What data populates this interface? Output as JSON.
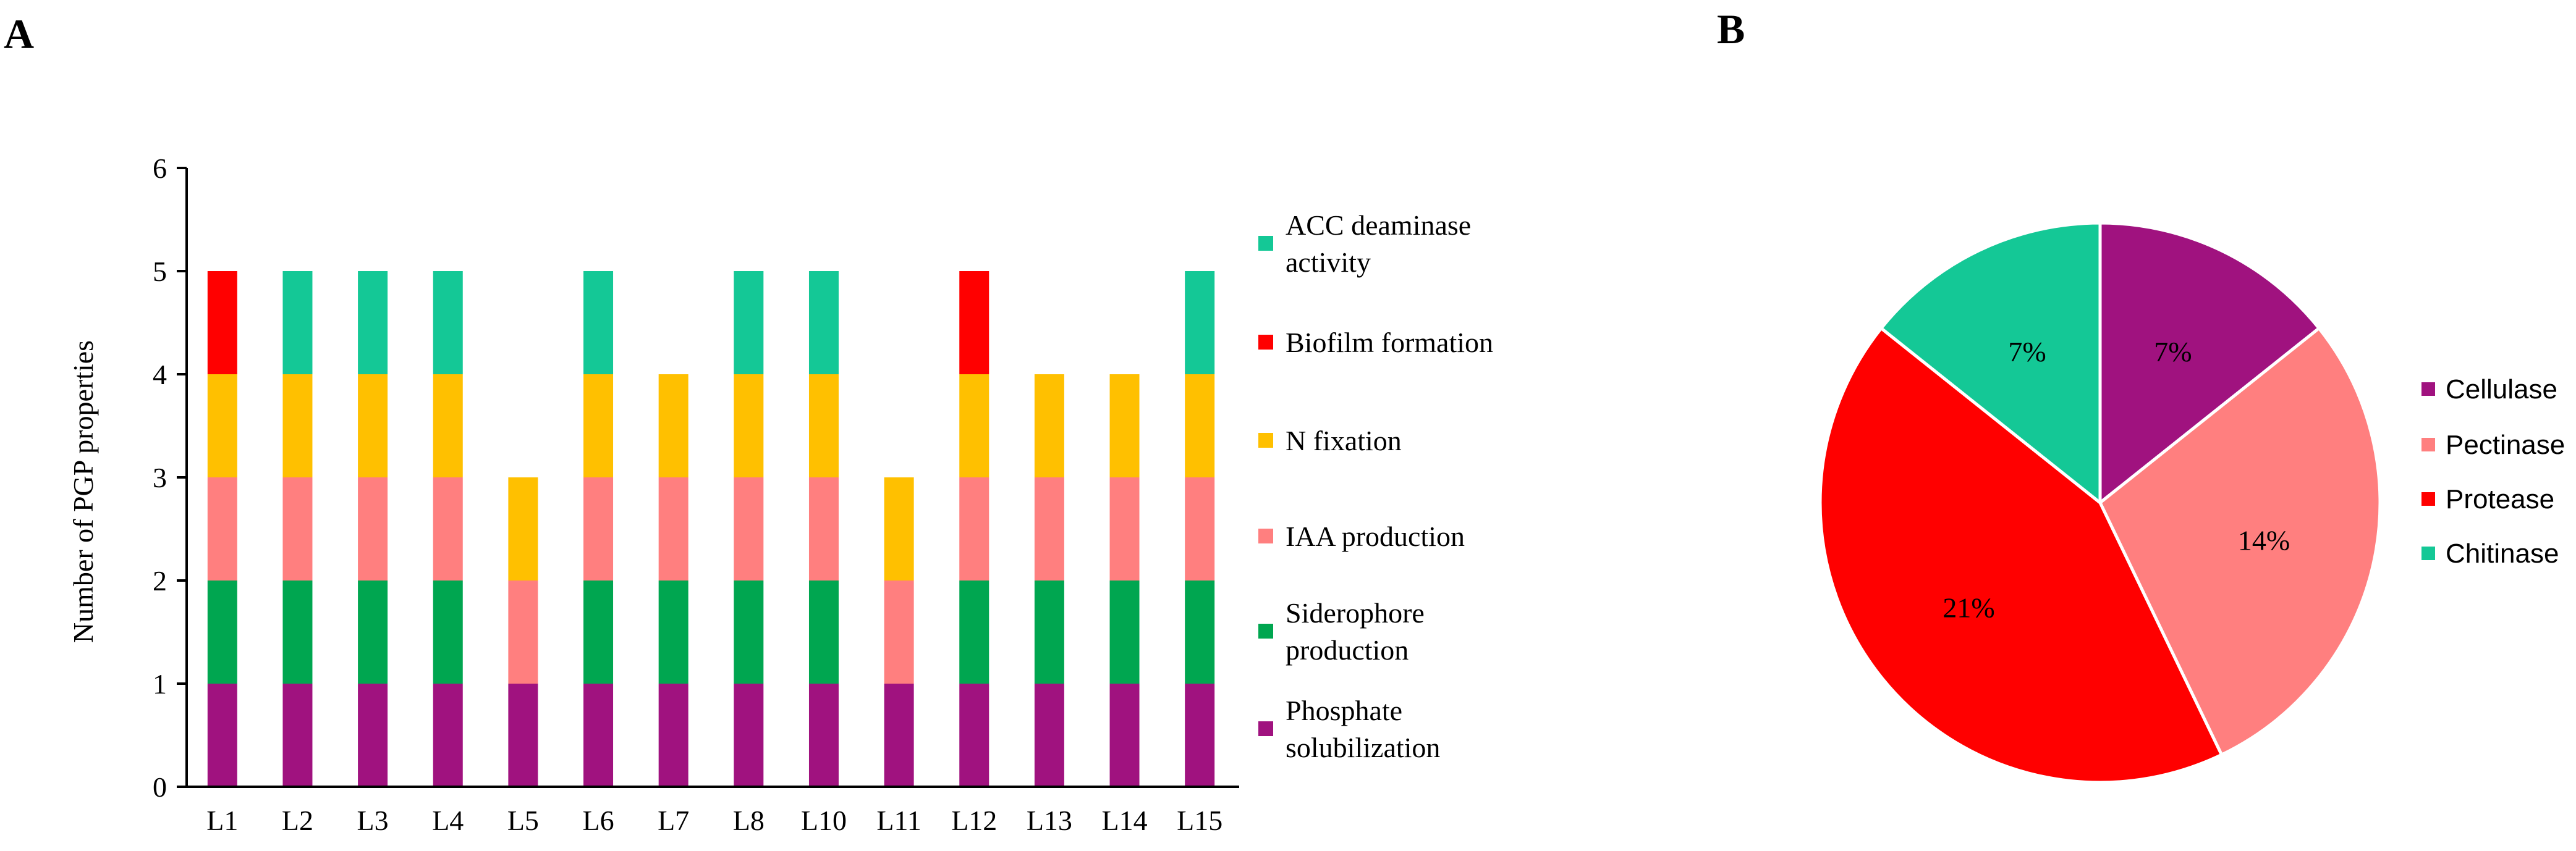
{
  "panels": {
    "a_label": "A",
    "b_label": "B"
  },
  "chart_data": [
    {
      "type": "bar",
      "stacked": true,
      "title": "",
      "xlabel": "",
      "ylabel": "Number of PGP properties",
      "ylim": [
        0,
        6
      ],
      "yticks": [
        "0",
        "1",
        "2",
        "3",
        "4",
        "5",
        "6"
      ],
      "categories": [
        "L1",
        "L2",
        "L3",
        "L4",
        "L5",
        "L6",
        "L7",
        "L8",
        "L10",
        "L11",
        "L12",
        "L13",
        "L14",
        "L15"
      ],
      "series": [
        {
          "name": "Phosphate solubilization",
          "color": "#A0127F",
          "values": [
            1,
            1,
            1,
            1,
            1,
            1,
            1,
            1,
            1,
            1,
            1,
            1,
            1,
            1
          ]
        },
        {
          "name": "Siderophore production",
          "color": "#00A650",
          "values": [
            1,
            1,
            1,
            1,
            0,
            1,
            1,
            1,
            1,
            0,
            1,
            1,
            1,
            1
          ]
        },
        {
          "name": "IAA production",
          "color": "#FF7F7F",
          "values": [
            1,
            1,
            1,
            1,
            1,
            1,
            1,
            1,
            1,
            1,
            1,
            1,
            1,
            1
          ]
        },
        {
          "name": "N fixation",
          "color": "#FFC000",
          "values": [
            1,
            1,
            1,
            1,
            1,
            1,
            1,
            1,
            1,
            1,
            1,
            1,
            1,
            1
          ]
        },
        {
          "name": "Biofilm formation",
          "color": "#FF0000",
          "values": [
            1,
            0,
            0,
            0,
            0,
            0,
            0,
            0,
            0,
            0,
            1,
            0,
            0,
            0
          ]
        },
        {
          "name": "ACC deaminase activity",
          "color": "#14C896",
          "values": [
            0,
            1,
            1,
            1,
            0,
            1,
            0,
            1,
            1,
            0,
            0,
            0,
            0,
            1
          ]
        }
      ],
      "legend": {
        "position": "right",
        "items": [
          {
            "lines": [
              "ACC deaminase",
              "activity"
            ],
            "color": "#14C896"
          },
          {
            "lines": [
              " Biofilm formation"
            ],
            "color": "#FF0000"
          },
          {
            "lines": [
              "N fixation"
            ],
            "color": "#FFC000"
          },
          {
            "lines": [
              " IAA production"
            ],
            "color": "#FF7F7F"
          },
          {
            "lines": [
              "Siderophore",
              "production"
            ],
            "color": "#00A650"
          },
          {
            "lines": [
              "Phosphate",
              "solubilization"
            ],
            "color": "#A0127F"
          }
        ]
      }
    },
    {
      "type": "pie",
      "title": "",
      "slices": [
        {
          "name": "Cellulase",
          "value": 7,
          "label": "7%",
          "color": "#A0127F"
        },
        {
          "name": "Pectinase",
          "value": 14,
          "label": "14%",
          "color": "#FF7F7F"
        },
        {
          "name": "Protease",
          "value": 21,
          "label": "21%",
          "color": "#FF0000"
        },
        {
          "name": "Chitinase",
          "value": 7,
          "label": "7%",
          "color": "#14C896"
        }
      ],
      "legend": {
        "position": "right"
      }
    }
  ]
}
